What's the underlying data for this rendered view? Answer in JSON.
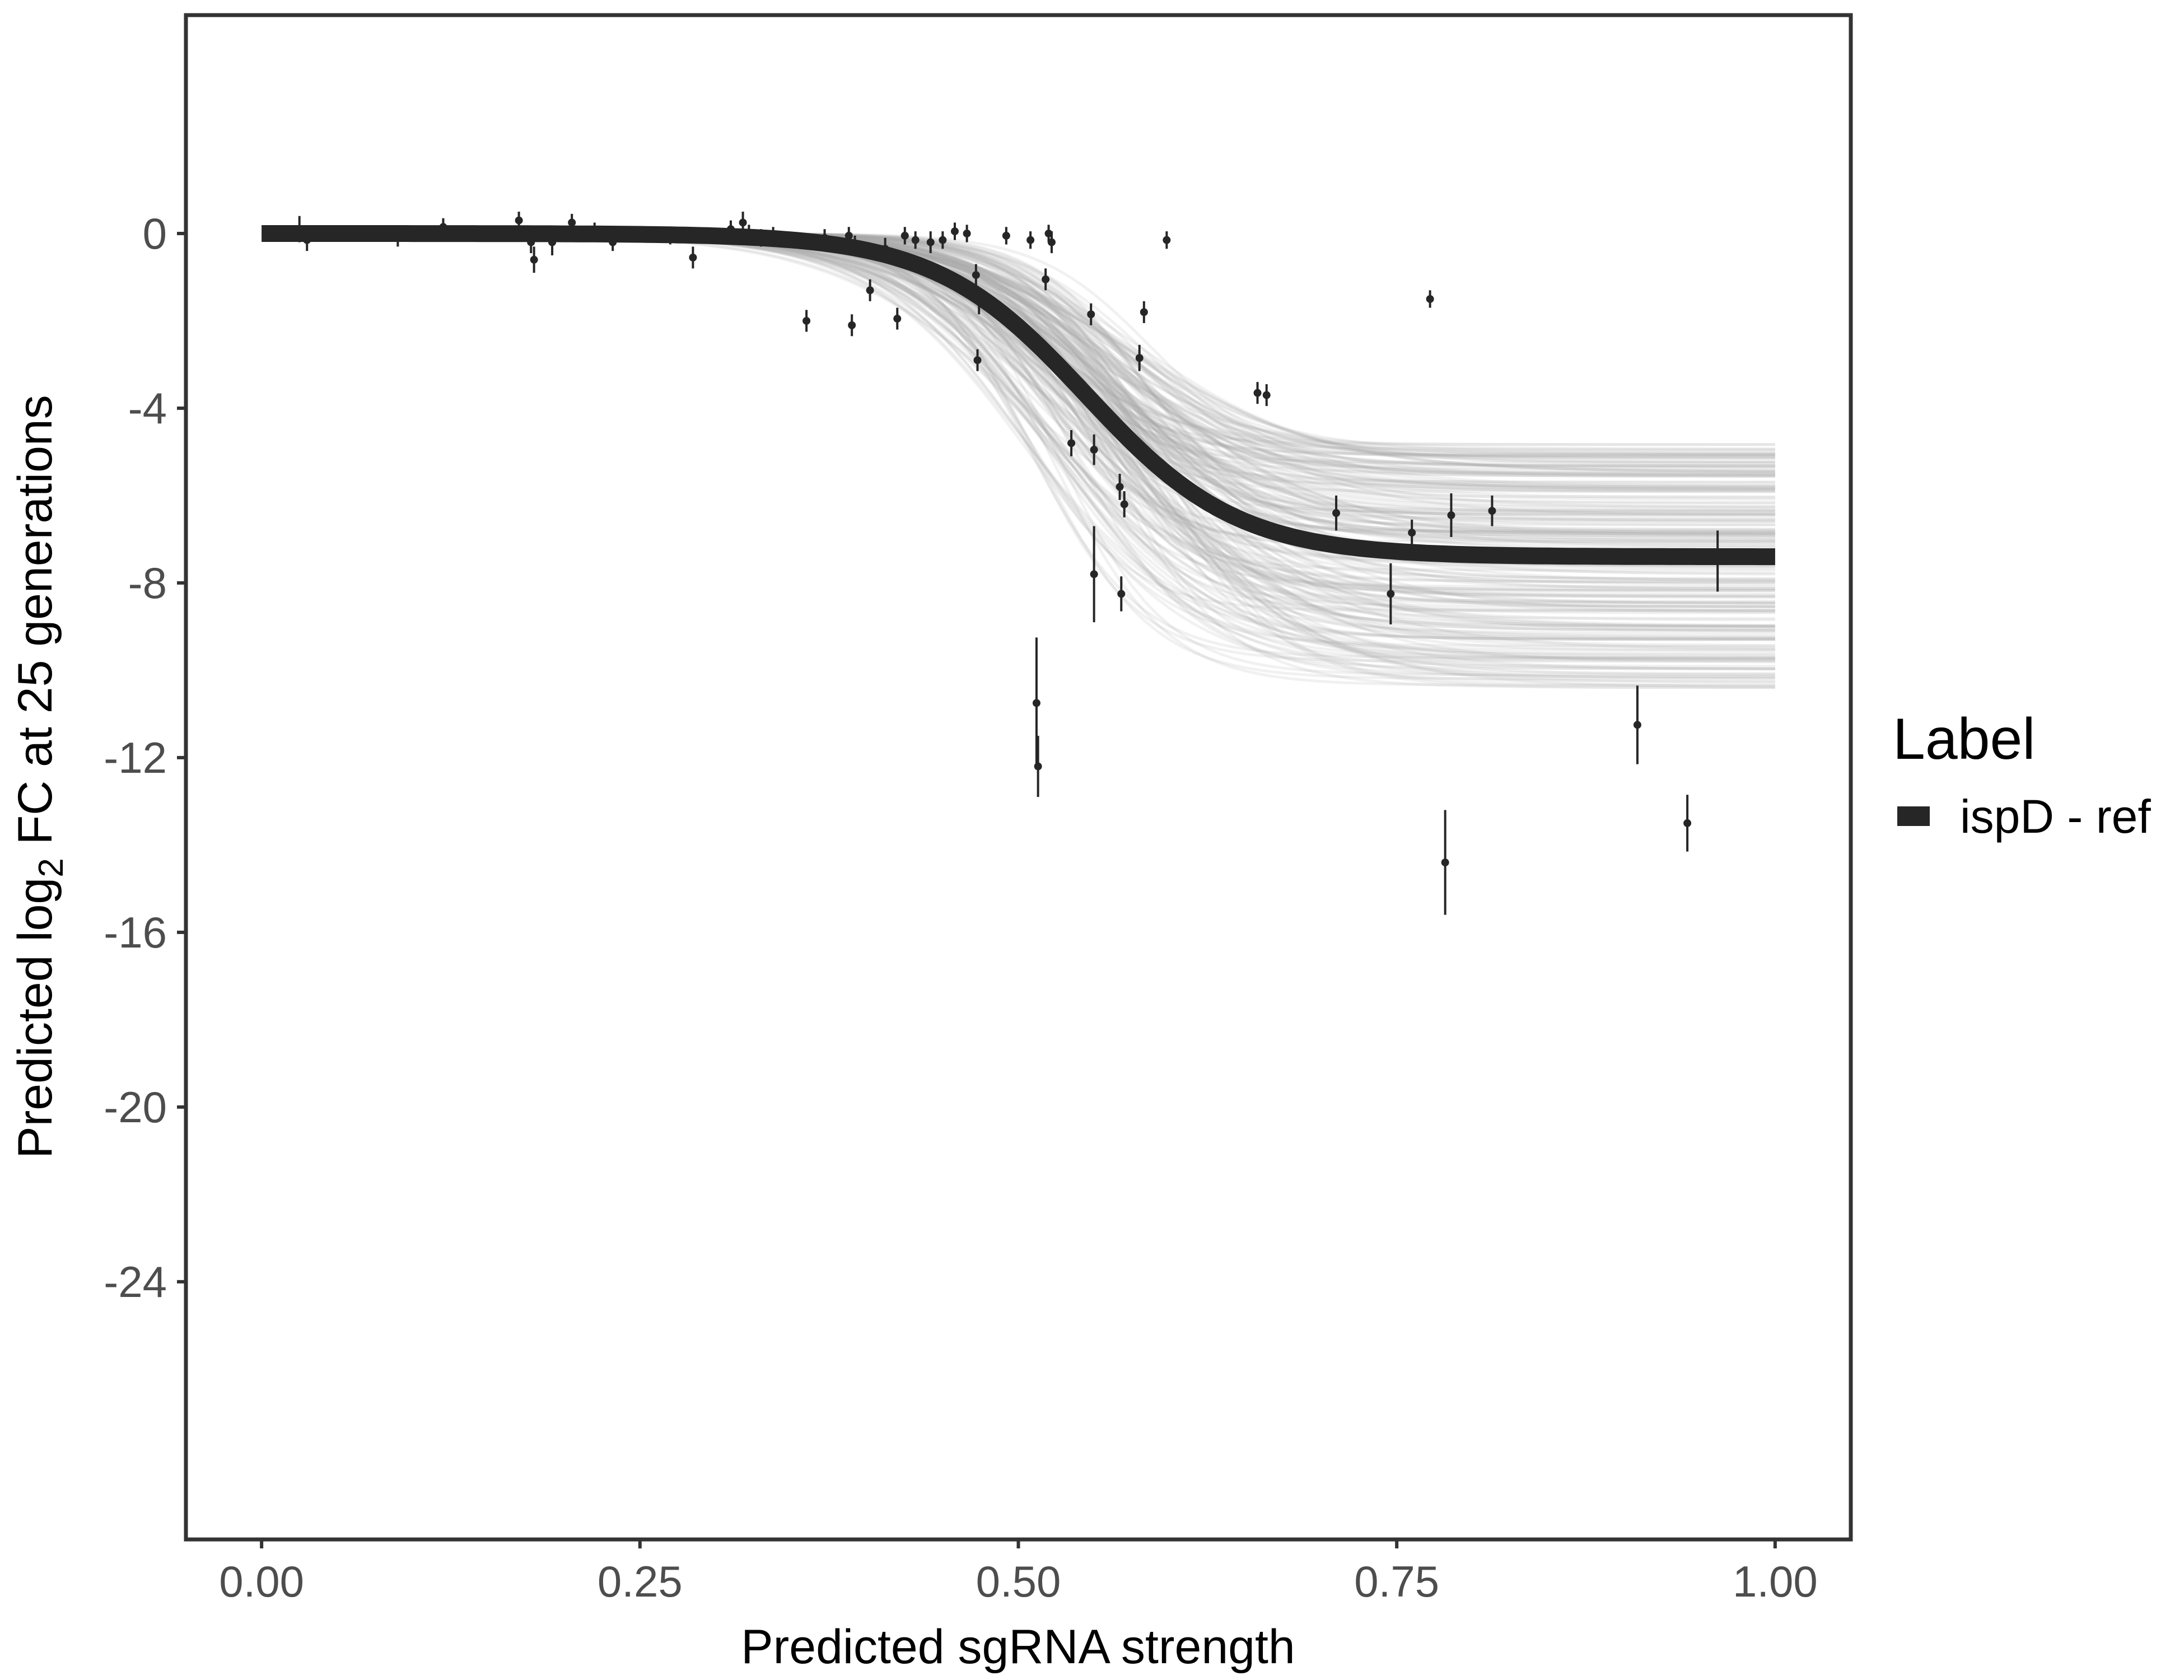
{
  "chart_data": {
    "type": "scatter",
    "title": "",
    "xlabel": "Predicted sgRNA strength",
    "ylabel_parts": [
      "Predicted  log",
      "2",
      " FC at 25 generations"
    ],
    "xlim": [
      -0.05,
      1.05
    ],
    "ylim": [
      -29.9,
      5.0
    ],
    "xticks": [
      0.0,
      0.25,
      0.5,
      0.75,
      1.0
    ],
    "xtick_labels": [
      "0.00",
      "0.25",
      "0.50",
      "0.75",
      "1.00"
    ],
    "yticks": [
      0,
      -4,
      -8,
      -12,
      -16,
      -20,
      -24
    ],
    "ytick_labels": [
      "0",
      "-4",
      "-8",
      "-12",
      "-16",
      "-20",
      "-24"
    ],
    "grid": false,
    "legend": {
      "title": "Label",
      "position": "right",
      "entries": [
        {
          "name": "ispD - ref",
          "color": "#262626"
        }
      ]
    },
    "fit_curve": {
      "name": "ispD - ref",
      "model": "logistic",
      "lower_asymptote": -7.4,
      "midpoint": 0.545,
      "scale": 0.05,
      "color": "#262626",
      "x_range": [
        0.0,
        1.0
      ]
    },
    "posterior_band": {
      "color": "#a6a6a6",
      "lower_asymptote_range": [
        -10.4,
        -4.8
      ],
      "midpoint_range": [
        0.5,
        0.59
      ],
      "scale_range": [
        0.035,
        0.065
      ]
    },
    "points": [
      {
        "x": 0.025,
        "y": 0.1,
        "err": 0.3
      },
      {
        "x": 0.03,
        "y": -0.15,
        "err": 0.25
      },
      {
        "x": 0.09,
        "y": -0.1,
        "err": 0.2
      },
      {
        "x": 0.12,
        "y": 0.15,
        "err": 0.2
      },
      {
        "x": 0.17,
        "y": 0.3,
        "err": 0.2
      },
      {
        "x": 0.178,
        "y": -0.2,
        "err": 0.25
      },
      {
        "x": 0.18,
        "y": -0.6,
        "err": 0.3
      },
      {
        "x": 0.192,
        "y": -0.2,
        "err": 0.3
      },
      {
        "x": 0.205,
        "y": 0.25,
        "err": 0.2
      },
      {
        "x": 0.22,
        "y": 0.05,
        "err": 0.2
      },
      {
        "x": 0.232,
        "y": -0.2,
        "err": 0.2
      },
      {
        "x": 0.27,
        "y": -0.05,
        "err": 0.2
      },
      {
        "x": 0.285,
        "y": -0.55,
        "err": 0.25
      },
      {
        "x": 0.31,
        "y": 0.1,
        "err": 0.2
      },
      {
        "x": 0.318,
        "y": 0.25,
        "err": 0.25
      },
      {
        "x": 0.322,
        "y": 0.0,
        "err": 0.2
      },
      {
        "x": 0.33,
        "y": -0.1,
        "err": 0.2
      },
      {
        "x": 0.338,
        "y": -0.05,
        "err": 0.2
      },
      {
        "x": 0.36,
        "y": -2.0,
        "err": 0.25
      },
      {
        "x": 0.372,
        "y": -0.1,
        "err": 0.2
      },
      {
        "x": 0.388,
        "y": -0.05,
        "err": 0.2
      },
      {
        "x": 0.392,
        "y": -0.25,
        "err": 0.2
      },
      {
        "x": 0.39,
        "y": -2.1,
        "err": 0.25
      },
      {
        "x": 0.402,
        "y": -1.3,
        "err": 0.25
      },
      {
        "x": 0.412,
        "y": -0.35,
        "err": 0.25
      },
      {
        "x": 0.42,
        "y": -1.95,
        "err": 0.25
      },
      {
        "x": 0.425,
        "y": -0.05,
        "err": 0.2
      },
      {
        "x": 0.432,
        "y": -0.15,
        "err": 0.2
      },
      {
        "x": 0.442,
        "y": -0.2,
        "err": 0.25
      },
      {
        "x": 0.45,
        "y": -0.15,
        "err": 0.2
      },
      {
        "x": 0.458,
        "y": 0.05,
        "err": 0.2
      },
      {
        "x": 0.466,
        "y": 0.0,
        "err": 0.2
      },
      {
        "x": 0.472,
        "y": -0.95,
        "err": 0.25
      },
      {
        "x": 0.474,
        "y": -1.55,
        "err": 0.3
      },
      {
        "x": 0.473,
        "y": -2.9,
        "err": 0.25
      },
      {
        "x": 0.492,
        "y": -0.05,
        "err": 0.2
      },
      {
        "x": 0.508,
        "y": -0.15,
        "err": 0.2
      },
      {
        "x": 0.518,
        "y": -1.05,
        "err": 0.25
      },
      {
        "x": 0.52,
        "y": 0.0,
        "err": 0.2
      },
      {
        "x": 0.522,
        "y": -0.2,
        "err": 0.25
      },
      {
        "x": 0.512,
        "y": -10.75,
        "err": 1.5
      },
      {
        "x": 0.513,
        "y": -12.2,
        "err": 0.7
      },
      {
        "x": 0.535,
        "y": -4.8,
        "err": 0.3
      },
      {
        "x": 0.548,
        "y": -1.85,
        "err": 0.25
      },
      {
        "x": 0.55,
        "y": -4.95,
        "err": 0.35
      },
      {
        "x": 0.55,
        "y": -7.8,
        "err": 1.1
      },
      {
        "x": 0.567,
        "y": -5.8,
        "err": 0.3
      },
      {
        "x": 0.568,
        "y": -8.25,
        "err": 0.4
      },
      {
        "x": 0.57,
        "y": -6.2,
        "err": 0.3
      },
      {
        "x": 0.58,
        "y": -2.85,
        "err": 0.3
      },
      {
        "x": 0.583,
        "y": -1.8,
        "err": 0.25
      },
      {
        "x": 0.598,
        "y": -0.15,
        "err": 0.2
      },
      {
        "x": 0.658,
        "y": -3.65,
        "err": 0.25
      },
      {
        "x": 0.664,
        "y": -3.7,
        "err": 0.25
      },
      {
        "x": 0.71,
        "y": -6.4,
        "err": 0.4
      },
      {
        "x": 0.746,
        "y": -8.25,
        "err": 0.7
      },
      {
        "x": 0.76,
        "y": -6.85,
        "err": 0.3
      },
      {
        "x": 0.772,
        "y": -1.5,
        "err": 0.2
      },
      {
        "x": 0.782,
        "y": -14.4,
        "err": 1.2
      },
      {
        "x": 0.786,
        "y": -6.45,
        "err": 0.5
      },
      {
        "x": 0.813,
        "y": -6.35,
        "err": 0.35
      },
      {
        "x": 0.909,
        "y": -11.25,
        "err": 0.9
      },
      {
        "x": 0.942,
        "y": -13.5,
        "err": 0.65
      },
      {
        "x": 0.962,
        "y": -7.5,
        "err": 0.7
      }
    ]
  }
}
